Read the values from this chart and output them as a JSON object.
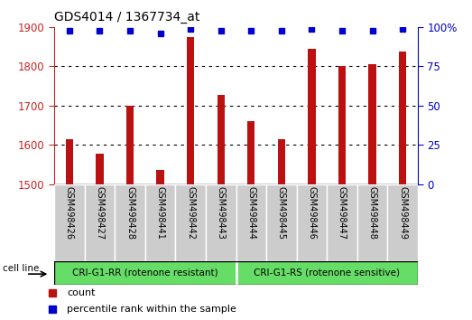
{
  "title": "GDS4014 / 1367734_at",
  "samples": [
    "GSM498426",
    "GSM498427",
    "GSM498428",
    "GSM498441",
    "GSM498442",
    "GSM498443",
    "GSM498444",
    "GSM498445",
    "GSM498446",
    "GSM498447",
    "GSM498448",
    "GSM498449"
  ],
  "counts": [
    1615,
    1578,
    1700,
    1535,
    1875,
    1728,
    1660,
    1615,
    1845,
    1800,
    1805,
    1838
  ],
  "percentile_ranks": [
    98,
    98,
    98,
    96,
    99,
    98,
    98,
    98,
    99,
    98,
    98,
    99
  ],
  "group_labels": [
    "CRI-G1-RR (rotenone resistant)",
    "CRI-G1-RS (rotenone sensitive)"
  ],
  "bar_color": "#BB1111",
  "dot_color": "#0000CC",
  "ylim": [
    1500,
    1900
  ],
  "yticks": [
    1500,
    1600,
    1700,
    1800,
    1900
  ],
  "right_yticks": [
    0,
    25,
    50,
    75,
    100
  ],
  "right_ylabels": [
    "0",
    "25",
    "50",
    "75",
    "100%"
  ],
  "left_axis_color": "#CC2222",
  "right_axis_color": "#0000CC",
  "legend_count_label": "count",
  "legend_percentile_label": "percentile rank within the sample",
  "cell_line_label": "cell line",
  "n_group1": 6,
  "n_group2": 6,
  "bar_width": 0.25,
  "group_fill": "#66DD66",
  "sample_box_fill": "#CCCCCC"
}
